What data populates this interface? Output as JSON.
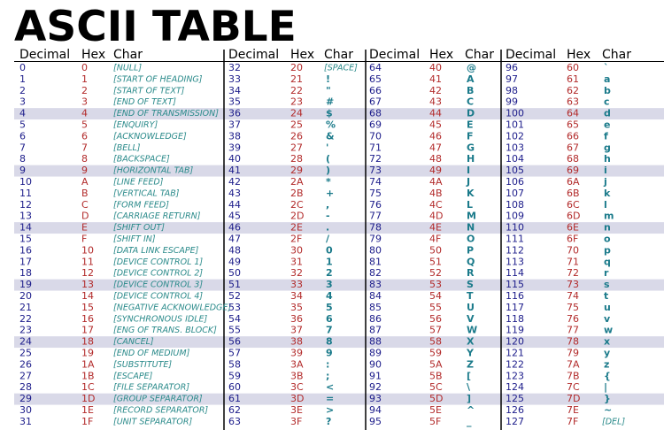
{
  "title": "ASCII TABLE",
  "groups": [
    {
      "header": [
        "Decimal",
        "Hex",
        "Char"
      ],
      "rows": [
        [
          "0",
          "0",
          "[NULL]"
        ],
        [
          "1",
          "1",
          "[START OF HEADING]"
        ],
        [
          "2",
          "2",
          "[START OF TEXT]"
        ],
        [
          "3",
          "3",
          "[END OF TEXT]"
        ],
        [
          "4",
          "4",
          "[END OF TRANSMISSION]"
        ],
        [
          "5",
          "5",
          "[ENQUIRY]"
        ],
        [
          "6",
          "6",
          "[ACKNOWLEDGE]"
        ],
        [
          "7",
          "7",
          "[BELL]"
        ],
        [
          "8",
          "8",
          "[BACKSPACE]"
        ],
        [
          "9",
          "9",
          "[HORIZONTAL TAB]"
        ],
        [
          "10",
          "A",
          "[LINE FEED]"
        ],
        [
          "11",
          "B",
          "[VERTICAL TAB]"
        ],
        [
          "12",
          "C",
          "[FORM FEED]"
        ],
        [
          "13",
          "D",
          "[CARRIAGE RETURN]"
        ],
        [
          "14",
          "E",
          "[SHIFT OUT]"
        ],
        [
          "15",
          "F",
          "[SHIFT IN]"
        ],
        [
          "16",
          "10",
          "[DATA LINK ESCAPE]"
        ],
        [
          "17",
          "11",
          "[DEVICE CONTROL 1]"
        ],
        [
          "18",
          "12",
          "[DEVICE CONTROL 2]"
        ],
        [
          "19",
          "13",
          "[DEVICE CONTROL 3]"
        ],
        [
          "20",
          "14",
          "[DEVICE CONTROL 4]"
        ],
        [
          "21",
          "15",
          "[NEGATIVE ACKNOWLEDGE]"
        ],
        [
          "22",
          "16",
          "[SYNCHRONOUS IDLE]"
        ],
        [
          "23",
          "17",
          "[ENG OF TRANS. BLOCK]"
        ],
        [
          "24",
          "18",
          "[CANCEL]"
        ],
        [
          "25",
          "19",
          "[END OF MEDIUM]"
        ],
        [
          "26",
          "1A",
          "[SUBSTITUTE]"
        ],
        [
          "27",
          "1B",
          "[ESCAPE]"
        ],
        [
          "28",
          "1C",
          "[FILE SEPARATOR]"
        ],
        [
          "29",
          "1D",
          "[GROUP SEPARATOR]"
        ],
        [
          "30",
          "1E",
          "[RECORD SEPARATOR]"
        ],
        [
          "31",
          "1F",
          "[UNIT SEPARATOR]"
        ]
      ]
    },
    {
      "header": [
        "Decimal",
        "Hex",
        "Char"
      ],
      "rows": [
        [
          "32",
          "20",
          "[SPACE]"
        ],
        [
          "33",
          "21",
          "!"
        ],
        [
          "34",
          "22",
          "\""
        ],
        [
          "35",
          "23",
          "#"
        ],
        [
          "36",
          "24",
          "$"
        ],
        [
          "37",
          "25",
          "%"
        ],
        [
          "38",
          "26",
          "&"
        ],
        [
          "39",
          "27",
          "'"
        ],
        [
          "40",
          "28",
          "("
        ],
        [
          "41",
          "29",
          ")"
        ],
        [
          "42",
          "2A",
          "*"
        ],
        [
          "43",
          "2B",
          "+"
        ],
        [
          "44",
          "2C",
          ","
        ],
        [
          "45",
          "2D",
          "-"
        ],
        [
          "46",
          "2E",
          "."
        ],
        [
          "47",
          "2F",
          "/"
        ],
        [
          "48",
          "30",
          "0"
        ],
        [
          "49",
          "31",
          "1"
        ],
        [
          "50",
          "32",
          "2"
        ],
        [
          "51",
          "33",
          "3"
        ],
        [
          "52",
          "34",
          "4"
        ],
        [
          "53",
          "35",
          "5"
        ],
        [
          "54",
          "36",
          "6"
        ],
        [
          "55",
          "37",
          "7"
        ],
        [
          "56",
          "38",
          "8"
        ],
        [
          "57",
          "39",
          "9"
        ],
        [
          "58",
          "3A",
          ":"
        ],
        [
          "59",
          "3B",
          ";"
        ],
        [
          "60",
          "3C",
          "<"
        ],
        [
          "61",
          "3D",
          "="
        ],
        [
          "62",
          "3E",
          ">"
        ],
        [
          "63",
          "3F",
          "?"
        ]
      ]
    },
    {
      "header": [
        "Decimal",
        "Hex",
        "Char"
      ],
      "rows": [
        [
          "64",
          "40",
          "@"
        ],
        [
          "65",
          "41",
          "A"
        ],
        [
          "66",
          "42",
          "B"
        ],
        [
          "67",
          "43",
          "C"
        ],
        [
          "68",
          "44",
          "D"
        ],
        [
          "69",
          "45",
          "E"
        ],
        [
          "70",
          "46",
          "F"
        ],
        [
          "71",
          "47",
          "G"
        ],
        [
          "72",
          "48",
          "H"
        ],
        [
          "73",
          "49",
          "I"
        ],
        [
          "74",
          "4A",
          "J"
        ],
        [
          "75",
          "4B",
          "K"
        ],
        [
          "76",
          "4C",
          "L"
        ],
        [
          "77",
          "4D",
          "M"
        ],
        [
          "78",
          "4E",
          "N"
        ],
        [
          "79",
          "4F",
          "O"
        ],
        [
          "80",
          "50",
          "P"
        ],
        [
          "81",
          "51",
          "Q"
        ],
        [
          "82",
          "52",
          "R"
        ],
        [
          "83",
          "53",
          "S"
        ],
        [
          "84",
          "54",
          "T"
        ],
        [
          "85",
          "55",
          "U"
        ],
        [
          "86",
          "56",
          "V"
        ],
        [
          "87",
          "57",
          "W"
        ],
        [
          "88",
          "58",
          "X"
        ],
        [
          "89",
          "59",
          "Y"
        ],
        [
          "90",
          "5A",
          "Z"
        ],
        [
          "91",
          "5B",
          "["
        ],
        [
          "92",
          "5C",
          "\\"
        ],
        [
          "93",
          "5D",
          "]"
        ],
        [
          "94",
          "5E",
          "^"
        ],
        [
          "95",
          "5F",
          "_"
        ]
      ]
    },
    {
      "header": [
        "Decimal",
        "Hex",
        "Char"
      ],
      "rows": [
        [
          "96",
          "60",
          "`"
        ],
        [
          "97",
          "61",
          "a"
        ],
        [
          "98",
          "62",
          "b"
        ],
        [
          "99",
          "63",
          "c"
        ],
        [
          "100",
          "64",
          "d"
        ],
        [
          "101",
          "65",
          "e"
        ],
        [
          "102",
          "66",
          "f"
        ],
        [
          "103",
          "67",
          "g"
        ],
        [
          "104",
          "68",
          "h"
        ],
        [
          "105",
          "69",
          "i"
        ],
        [
          "106",
          "6A",
          "j"
        ],
        [
          "107",
          "6B",
          "k"
        ],
        [
          "108",
          "6C",
          "l"
        ],
        [
          "109",
          "6D",
          "m"
        ],
        [
          "110",
          "6E",
          "n"
        ],
        [
          "111",
          "6F",
          "o"
        ],
        [
          "112",
          "70",
          "p"
        ],
        [
          "113",
          "71",
          "q"
        ],
        [
          "114",
          "72",
          "r"
        ],
        [
          "115",
          "73",
          "s"
        ],
        [
          "116",
          "74",
          "t"
        ],
        [
          "117",
          "75",
          "u"
        ],
        [
          "118",
          "76",
          "v"
        ],
        [
          "119",
          "77",
          "w"
        ],
        [
          "120",
          "78",
          "x"
        ],
        [
          "121",
          "79",
          "y"
        ],
        [
          "122",
          "7A",
          "z"
        ],
        [
          "123",
          "7B",
          "{"
        ],
        [
          "124",
          "7C",
          "|"
        ],
        [
          "125",
          "7D",
          "}"
        ],
        [
          "126",
          "7E",
          "~"
        ],
        [
          "127",
          "7F",
          "[DEL]"
        ]
      ]
    }
  ]
}
